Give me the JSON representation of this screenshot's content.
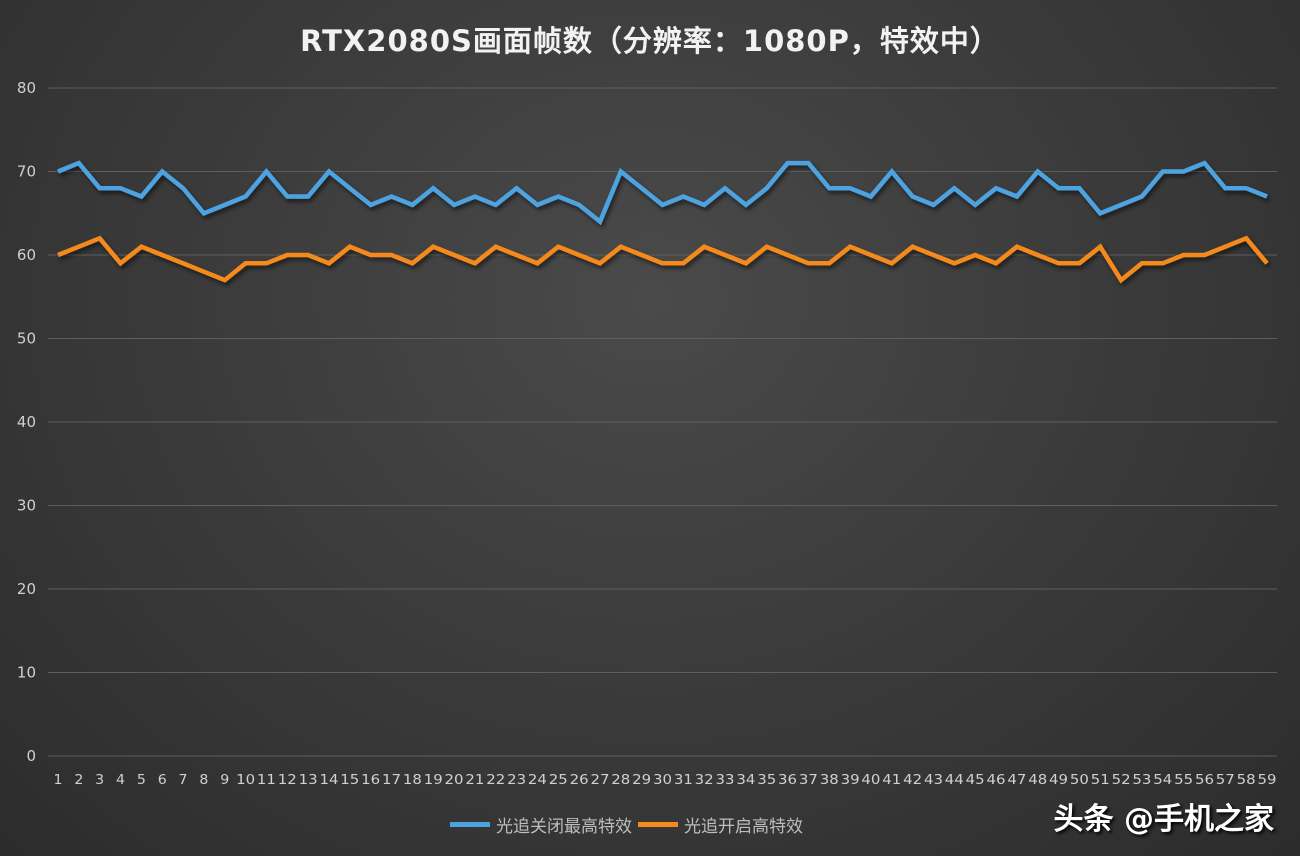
{
  "title": "RTX2080S画面帧数（分辨率：1080P，特效中）",
  "watermark": "头条 @手机之家",
  "colors": {
    "series_off": "#4da3e0",
    "series_on": "#f58a1f",
    "grid": "#5e5e5e"
  },
  "legend": [
    {
      "label": "光追关闭最高特效",
      "color": "#4da3e0"
    },
    {
      "label": "光追开启高特效",
      "color": "#f58a1f"
    }
  ],
  "chart_data": {
    "type": "line",
    "title": "RTX2080S画面帧数（分辨率：1080P，特效中）",
    "xlabel": "",
    "ylabel": "",
    "ylim": [
      0,
      80
    ],
    "yticks": [
      0,
      10,
      20,
      30,
      40,
      50,
      60,
      70,
      80
    ],
    "grid": true,
    "legend_position": "bottom",
    "x": [
      1,
      2,
      3,
      4,
      5,
      6,
      7,
      8,
      9,
      10,
      11,
      12,
      13,
      14,
      15,
      16,
      17,
      18,
      19,
      20,
      21,
      22,
      23,
      24,
      25,
      26,
      27,
      28,
      29,
      30,
      31,
      32,
      33,
      34,
      35,
      36,
      37,
      38,
      39,
      40,
      41,
      42,
      43,
      44,
      45,
      46,
      47,
      48,
      49,
      50,
      51,
      52,
      53,
      54,
      55,
      56,
      57,
      58,
      59
    ],
    "series": [
      {
        "name": "光追关闭最高特效",
        "color": "#4da3e0",
        "values": [
          70,
          71,
          68,
          68,
          67,
          70,
          68,
          65,
          66,
          67,
          70,
          67,
          67,
          70,
          68,
          66,
          67,
          66,
          68,
          66,
          67,
          66,
          68,
          66,
          67,
          66,
          64,
          70,
          68,
          66,
          67,
          66,
          68,
          66,
          68,
          71,
          71,
          68,
          68,
          67,
          70,
          67,
          66,
          68,
          66,
          68,
          67,
          70,
          68,
          68,
          65,
          66,
          67,
          70,
          70,
          71,
          68,
          68,
          67
        ]
      },
      {
        "name": "光追开启高特效",
        "color": "#f58a1f",
        "values": [
          60,
          61,
          62,
          59,
          61,
          60,
          59,
          58,
          57,
          59,
          59,
          60,
          60,
          59,
          61,
          60,
          60,
          59,
          61,
          60,
          59,
          61,
          60,
          59,
          61,
          60,
          59,
          61,
          60,
          59,
          59,
          61,
          60,
          59,
          61,
          60,
          59,
          59,
          61,
          60,
          59,
          61,
          60,
          59,
          60,
          59,
          61,
          60,
          59,
          59,
          61,
          57,
          59,
          59,
          60,
          60,
          61,
          62,
          59
        ]
      }
    ]
  }
}
